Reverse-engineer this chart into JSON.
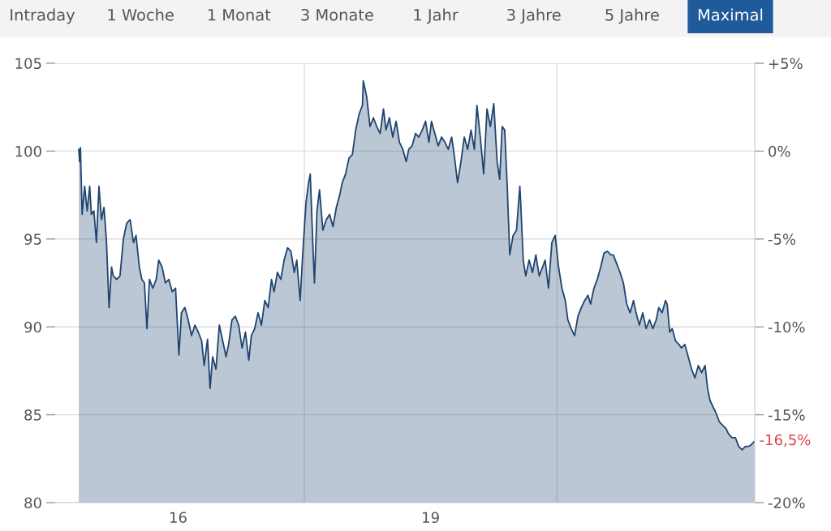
{
  "chart_data": {
    "type": "area",
    "annotations": [
      "Intraday",
      "1 Woche",
      "1 Monat",
      "3 Monate",
      "1 Jahr",
      "3 Jahre",
      "5 Jahre",
      "Maximal",
      {
        "text": "-16,5%",
        "x": 2022.85,
        "y": 83.5
      }
    ],
    "x": [
      2014.82,
      2014.83,
      2014.84,
      2014.86,
      2014.89,
      2014.92,
      2014.95,
      2014.97,
      2015.0,
      2015.03,
      2015.06,
      2015.09,
      2015.12,
      2015.15,
      2015.18,
      2015.21,
      2015.23,
      2015.27,
      2015.31,
      2015.35,
      2015.39,
      2015.43,
      2015.47,
      2015.5,
      2015.54,
      2015.57,
      2015.6,
      2015.63,
      2015.66,
      2015.7,
      2015.74,
      2015.77,
      2015.81,
      2015.85,
      2015.89,
      2015.93,
      2015.97,
      2016.01,
      2016.04,
      2016.08,
      2016.12,
      2016.16,
      2016.2,
      2016.24,
      2016.28,
      2016.31,
      2016.35,
      2016.38,
      2016.41,
      2016.45,
      2016.49,
      2016.53,
      2016.57,
      2016.6,
      2016.64,
      2016.68,
      2016.72,
      2016.76,
      2016.8,
      2016.84,
      2016.87,
      2016.91,
      2016.95,
      2016.99,
      2017.03,
      2017.07,
      2017.11,
      2017.14,
      2017.18,
      2017.22,
      2017.26,
      2017.3,
      2017.34,
      2017.38,
      2017.41,
      2017.45,
      2017.48,
      2017.52,
      2017.55,
      2017.57,
      2017.6,
      2017.62,
      2017.65,
      2017.68,
      2017.72,
      2017.76,
      2017.8,
      2017.84,
      2017.88,
      2017.92,
      2017.95,
      2017.99,
      2018.03,
      2018.07,
      2018.11,
      2018.15,
      2018.19,
      2018.2,
      2018.24,
      2018.28,
      2018.32,
      2018.36,
      2018.4,
      2018.44,
      2018.47,
      2018.51,
      2018.55,
      2018.59,
      2018.63,
      2018.67,
      2018.71,
      2018.74,
      2018.78,
      2018.82,
      2018.86,
      2018.9,
      2018.94,
      2018.98,
      2019.01,
      2019.05,
      2019.09,
      2019.13,
      2019.17,
      2019.21,
      2019.25,
      2019.28,
      2019.32,
      2019.36,
      2019.4,
      2019.44,
      2019.48,
      2019.52,
      2019.55,
      2019.59,
      2019.63,
      2019.67,
      2019.71,
      2019.75,
      2019.79,
      2019.82,
      2019.85,
      2019.88,
      2019.91,
      2019.94,
      2019.98,
      2020.02,
      2020.06,
      2020.07,
      2020.1,
      2020.13,
      2020.17,
      2020.21,
      2020.25,
      2020.29,
      2020.33,
      2020.36,
      2020.4,
      2020.44,
      2020.48,
      2020.52,
      2020.56,
      2020.6,
      2020.63,
      2020.67,
      2020.71,
      2020.75,
      2020.79,
      2020.83,
      2020.87,
      2020.9,
      2020.94,
      2020.98,
      2021.02,
      2021.06,
      2021.1,
      2021.14,
      2021.17,
      2021.21,
      2021.25,
      2021.29,
      2021.33,
      2021.37,
      2021.41,
      2021.44,
      2021.48,
      2021.52,
      2021.56,
      2021.6,
      2021.64,
      2021.68,
      2021.71,
      2021.75,
      2021.79,
      2021.81,
      2021.84,
      2021.87,
      2021.91,
      2021.95,
      2021.98,
      2022.02,
      2022.06,
      2022.1,
      2022.14,
      2022.18,
      2022.22,
      2022.26,
      2022.29,
      2022.32,
      2022.35,
      2022.39,
      2022.43,
      2022.47,
      2022.51,
      2022.54,
      2022.58,
      2022.62,
      2022.66,
      2022.7,
      2022.74,
      2022.78,
      2022.81,
      2022.85
    ],
    "series": [
      {
        "color": "#1f4470",
        "values": [
          100.1,
          99.4,
          100.2,
          96.4,
          98.0,
          96.6,
          98.0,
          96.4,
          96.6,
          94.8,
          98.0,
          96.1,
          96.8,
          94.8,
          91.1,
          93.4,
          92.9,
          92.7,
          92.9,
          95.0,
          95.9,
          96.1,
          94.8,
          95.2,
          93.4,
          92.7,
          92.5,
          89.9,
          92.7,
          92.2,
          92.7,
          93.8,
          93.4,
          92.5,
          92.7,
          92.0,
          92.2,
          88.4,
          90.8,
          91.1,
          90.4,
          89.5,
          90.1,
          89.7,
          89.2,
          87.8,
          89.3,
          86.5,
          88.3,
          87.6,
          90.1,
          89.2,
          88.3,
          89.0,
          90.4,
          90.6,
          90.1,
          88.8,
          89.7,
          88.1,
          89.5,
          89.9,
          90.8,
          90.1,
          91.5,
          91.1,
          92.7,
          92.0,
          93.1,
          92.7,
          93.8,
          94.5,
          94.3,
          93.1,
          93.8,
          91.5,
          94.1,
          97.1,
          98.2,
          98.7,
          94.8,
          92.5,
          96.6,
          97.8,
          95.5,
          96.1,
          96.4,
          95.7,
          96.8,
          97.5,
          98.2,
          98.7,
          99.6,
          99.8,
          101.2,
          102.1,
          102.6,
          104.0,
          103.1,
          101.4,
          101.9,
          101.4,
          101.0,
          102.4,
          101.2,
          101.9,
          100.8,
          101.7,
          100.5,
          100.1,
          99.4,
          100.1,
          100.3,
          101.0,
          100.8,
          101.2,
          101.7,
          100.5,
          101.7,
          101.0,
          100.3,
          100.8,
          100.5,
          100.1,
          100.8,
          99.8,
          98.2,
          99.4,
          100.8,
          100.1,
          101.2,
          100.1,
          102.6,
          100.8,
          98.7,
          102.4,
          101.4,
          102.7,
          99.4,
          98.4,
          101.4,
          101.2,
          98.0,
          94.1,
          95.2,
          95.5,
          98.0,
          97.1,
          93.8,
          92.9,
          93.8,
          93.1,
          94.1,
          92.9,
          93.4,
          93.8,
          92.2,
          94.8,
          95.2,
          93.4,
          92.2,
          91.5,
          90.4,
          89.9,
          89.5,
          90.6,
          91.1,
          91.5,
          91.8,
          91.3,
          92.2,
          92.7,
          93.4,
          94.2,
          94.3,
          94.1,
          94.1,
          93.6,
          93.1,
          92.5,
          91.3,
          90.8,
          91.5,
          90.8,
          90.1,
          90.8,
          89.9,
          90.4,
          89.9,
          90.4,
          91.1,
          90.8,
          91.5,
          91.3,
          89.7,
          89.9,
          89.2,
          89.0,
          88.8,
          89.0,
          88.3,
          87.6,
          87.1,
          87.8,
          87.4,
          87.8,
          86.5,
          85.8,
          85.5,
          85.1,
          84.6,
          84.4,
          84.2,
          83.9,
          83.7,
          83.7,
          83.2,
          83.0,
          83.2,
          83.2,
          83.3,
          83.5
        ]
      }
    ],
    "xlim": [
      2014.54,
      2022.85
    ],
    "xticks": [
      {
        "value": 2016,
        "label": "16"
      },
      {
        "value": 2019,
        "label": "19"
      }
    ],
    "ylim": [
      80,
      105
    ],
    "yticks": [
      80,
      85,
      90,
      95,
      100,
      105
    ],
    "y2lim": [
      -20,
      5
    ],
    "y2ticks": [
      {
        "value": 5,
        "label": "+5%"
      },
      {
        "value": 0,
        "label": "0%"
      },
      {
        "value": -5,
        "label": "-5%"
      },
      {
        "value": -10,
        "label": "-10%"
      },
      {
        "value": -15,
        "label": "-15%"
      },
      {
        "value": -20,
        "label": "-20%"
      }
    ],
    "ref_lines": [
      {
        "axis": "x",
        "value": 2017.5,
        "color": "#dddddd"
      },
      {
        "axis": "x",
        "value": 2020.5,
        "color": "#dddddd"
      }
    ],
    "grid": "y"
  }
}
